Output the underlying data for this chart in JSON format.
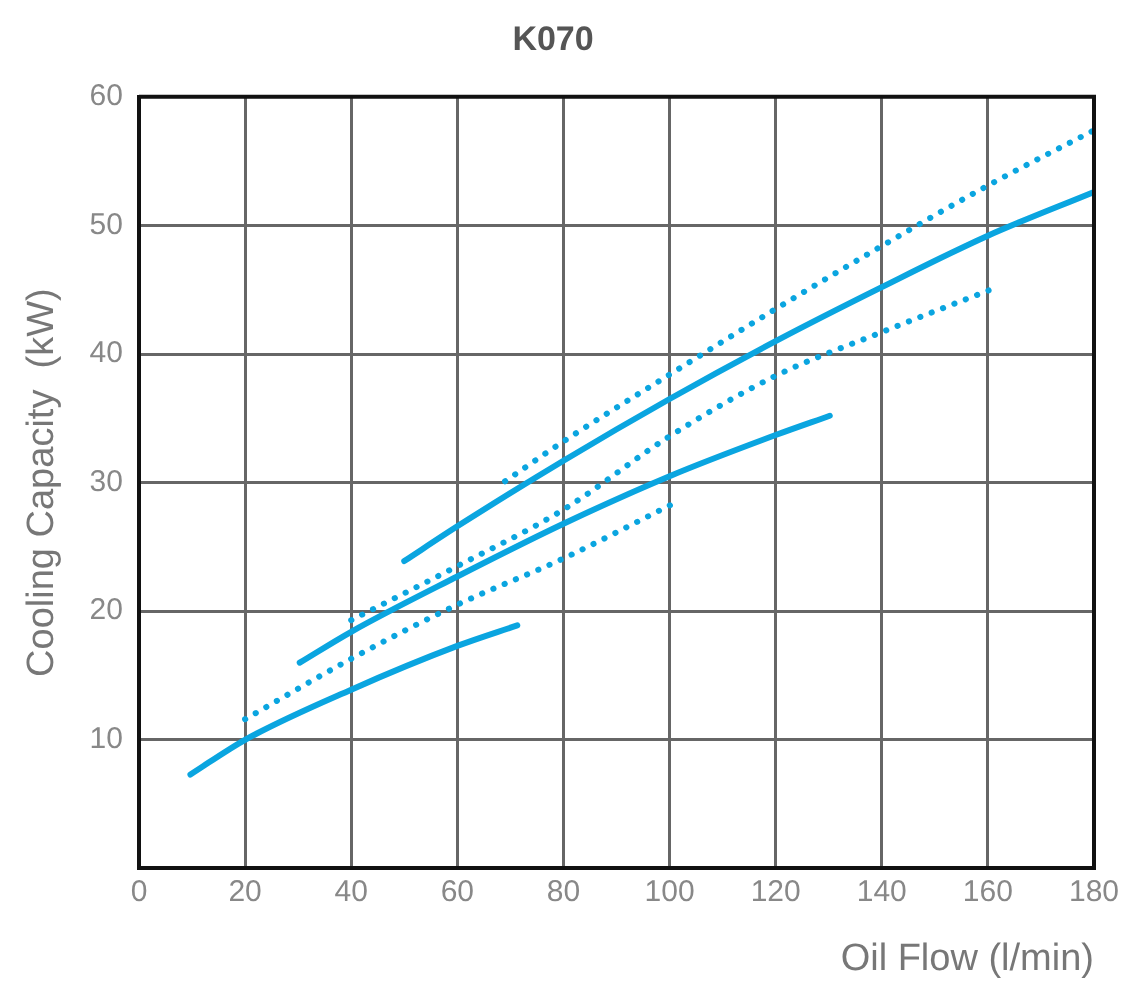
{
  "chart_data": {
    "type": "line",
    "title": "K070",
    "xlabel": "Oil Flow (l/min)",
    "ylabel": "Cooling Capacity  (kW)",
    "xlim": [
      0,
      180
    ],
    "xticks": [
      0,
      20,
      40,
      60,
      80,
      100,
      120,
      140,
      160,
      180
    ],
    "ylim": [
      0,
      60
    ],
    "yticks": [
      10,
      20,
      30,
      40,
      50,
      60
    ],
    "grid": true,
    "legend": false,
    "marker": "none",
    "series": [
      {
        "color": "#0aa5e0",
        "line_style": "solid",
        "x": [
          9.7,
          20,
          40,
          60,
          71.3
        ],
        "values": [
          7.3,
          10,
          13.9,
          17.3,
          18.9
        ]
      },
      {
        "color": "#0aa5e0",
        "line_style": "dotted",
        "x": [
          20,
          40,
          60,
          80,
          100.4
        ],
        "values": [
          11.6,
          16.3,
          20.5,
          24.1,
          28.3
        ]
      },
      {
        "color": "#0aa5e0",
        "line_style": "solid",
        "x": [
          30.3,
          40,
          60,
          80,
          100,
          120,
          130.2
        ],
        "values": [
          16.0,
          18.4,
          22.7,
          26.8,
          30.5,
          33.7,
          35.2
        ]
      },
      {
        "color": "#0aa5e0",
        "line_style": "dotted",
        "x": [
          40,
          60,
          80,
          100,
          120,
          140,
          160.5
        ],
        "values": [
          19.3,
          23.5,
          27.9,
          33.6,
          38.3,
          41.7,
          45.0
        ]
      },
      {
        "color": "#0aa5e0",
        "line_style": "solid",
        "x": [
          50,
          60,
          80,
          100,
          120,
          140,
          160,
          180
        ],
        "values": [
          23.9,
          26.6,
          31.7,
          36.5,
          41.0,
          45.2,
          49.2,
          52.6
        ]
      },
      {
        "color": "#0aa5e0",
        "line_style": "dotted",
        "x": [
          69,
          80,
          100,
          120,
          140,
          160,
          180
        ],
        "values": [
          30.1,
          33.2,
          38.4,
          43.5,
          48.4,
          53.1,
          57.4
        ]
      }
    ]
  }
}
